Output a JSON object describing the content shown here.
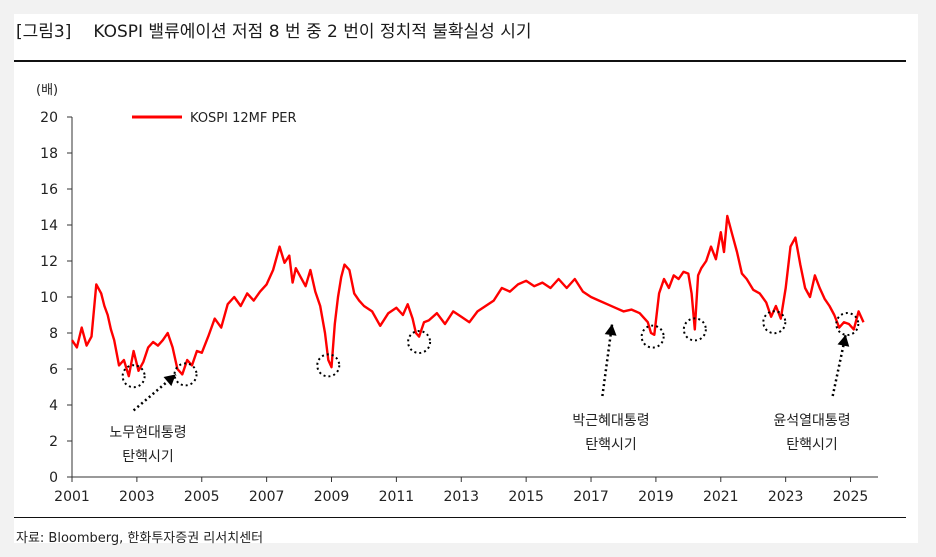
{
  "title": {
    "tag": "[그림3]",
    "text": "KOSPI 밸류에이션 저점 8 번 중 2 번이 정치적 불확실성 시기"
  },
  "source": "자료: Bloomberg, 한화투자증권 리서치센터",
  "chart_data": {
    "type": "line",
    "title": "KOSPI 밸류에이션 저점 8 번 중 2 번이 정치적 불확실성 시기",
    "ylabel": "(배)",
    "xlabel": "",
    "ylim": [
      0,
      20
    ],
    "xlim": [
      2001,
      2025.6
    ],
    "yticks": [
      0,
      2,
      4,
      6,
      8,
      10,
      12,
      14,
      16,
      18,
      20
    ],
    "xticks": [
      2001,
      2003,
      2005,
      2007,
      2009,
      2011,
      2013,
      2015,
      2017,
      2019,
      2021,
      2023,
      2025
    ],
    "grid": false,
    "legend": "top-left",
    "series": [
      {
        "name": "KOSPI 12MF PER",
        "color": "#ff0000",
        "x": [
          2001.0,
          2001.15,
          2001.3,
          2001.45,
          2001.6,
          2001.75,
          2001.9,
          2002.0,
          2002.1,
          2002.2,
          2002.3,
          2002.45,
          2002.6,
          2002.75,
          2002.9,
          2003.05,
          2003.2,
          2003.35,
          2003.5,
          2003.65,
          2003.8,
          2003.95,
          2004.1,
          2004.25,
          2004.4,
          2004.55,
          2004.7,
          2004.85,
          2005.0,
          2005.2,
          2005.4,
          2005.6,
          2005.8,
          2006.0,
          2006.2,
          2006.4,
          2006.6,
          2006.8,
          2007.0,
          2007.2,
          2007.4,
          2007.55,
          2007.7,
          2007.8,
          2007.9,
          2008.05,
          2008.2,
          2008.35,
          2008.5,
          2008.65,
          2008.8,
          2008.9,
          2009.0,
          2009.1,
          2009.2,
          2009.3,
          2009.4,
          2009.55,
          2009.7,
          2009.85,
          2010.0,
          2010.25,
          2010.5,
          2010.75,
          2011.0,
          2011.2,
          2011.35,
          2011.5,
          2011.6,
          2011.7,
          2011.85,
          2012.0,
          2012.25,
          2012.5,
          2012.75,
          2013.0,
          2013.25,
          2013.5,
          2013.75,
          2014.0,
          2014.25,
          2014.5,
          2014.75,
          2015.0,
          2015.25,
          2015.5,
          2015.75,
          2016.0,
          2016.25,
          2016.5,
          2016.75,
          2017.0,
          2017.25,
          2017.5,
          2017.75,
          2018.0,
          2018.25,
          2018.5,
          2018.75,
          2018.85,
          2018.95,
          2019.1,
          2019.25,
          2019.4,
          2019.55,
          2019.7,
          2019.85,
          2020.0,
          2020.1,
          2020.2,
          2020.3,
          2020.4,
          2020.55,
          2020.7,
          2020.85,
          2021.0,
          2021.1,
          2021.2,
          2021.35,
          2021.5,
          2021.65,
          2021.8,
          2022.0,
          2022.2,
          2022.4,
          2022.55,
          2022.7,
          2022.85,
          2023.0,
          2023.15,
          2023.3,
          2023.45,
          2023.6,
          2023.75,
          2023.9,
          2024.05,
          2024.2,
          2024.35,
          2024.5,
          2024.65,
          2024.8,
          2024.95,
          2025.1,
          2025.25,
          2025.4
        ],
        "values": [
          7.6,
          7.2,
          8.3,
          7.3,
          7.8,
          10.7,
          10.2,
          9.5,
          9.0,
          8.2,
          7.6,
          6.2,
          6.5,
          5.6,
          7.0,
          5.9,
          6.4,
          7.2,
          7.5,
          7.3,
          7.6,
          8.0,
          7.2,
          6.0,
          5.7,
          6.5,
          6.2,
          7.0,
          6.9,
          7.8,
          8.8,
          8.3,
          9.6,
          10.0,
          9.5,
          10.2,
          9.8,
          10.3,
          10.7,
          11.5,
          12.8,
          11.9,
          12.3,
          10.8,
          11.6,
          11.1,
          10.6,
          11.5,
          10.3,
          9.5,
          8.0,
          6.5,
          6.1,
          8.5,
          10.0,
          11.1,
          11.8,
          11.5,
          10.2,
          9.8,
          9.5,
          9.2,
          8.4,
          9.1,
          9.4,
          9.0,
          9.6,
          8.8,
          8.0,
          7.8,
          8.6,
          8.7,
          9.1,
          8.5,
          9.2,
          8.9,
          8.6,
          9.2,
          9.5,
          9.8,
          10.5,
          10.3,
          10.7,
          10.9,
          10.6,
          10.8,
          10.5,
          11.0,
          10.5,
          11.0,
          10.3,
          10.0,
          9.8,
          9.6,
          9.4,
          9.2,
          9.3,
          9.1,
          8.6,
          8.0,
          7.9,
          10.2,
          11.0,
          10.5,
          11.2,
          11.0,
          11.4,
          11.3,
          10.2,
          8.2,
          11.2,
          11.6,
          12.0,
          12.8,
          12.1,
          13.6,
          12.5,
          14.5,
          13.5,
          12.5,
          11.3,
          11.0,
          10.4,
          10.2,
          9.7,
          8.9,
          9.5,
          8.8,
          10.5,
          12.8,
          13.3,
          11.8,
          10.5,
          10.0,
          11.2,
          10.5,
          9.9,
          9.5,
          9.0,
          8.3,
          8.6,
          8.5,
          8.2,
          9.2,
          8.6
        ]
      }
    ],
    "annotations": [
      {
        "lines": [
          "노무현대통령",
          "탄핵시기"
        ],
        "x": 2004.2,
        "y": 5.7
      },
      {
        "lines": [
          "박근혜대통령",
          "탄핵시기"
        ],
        "x": 2017.6,
        "y": 7.8
      },
      {
        "lines": [
          "윤석열대통령",
          "탄핵시기"
        ],
        "x": 2024.8,
        "y": 7.5
      }
    ]
  }
}
